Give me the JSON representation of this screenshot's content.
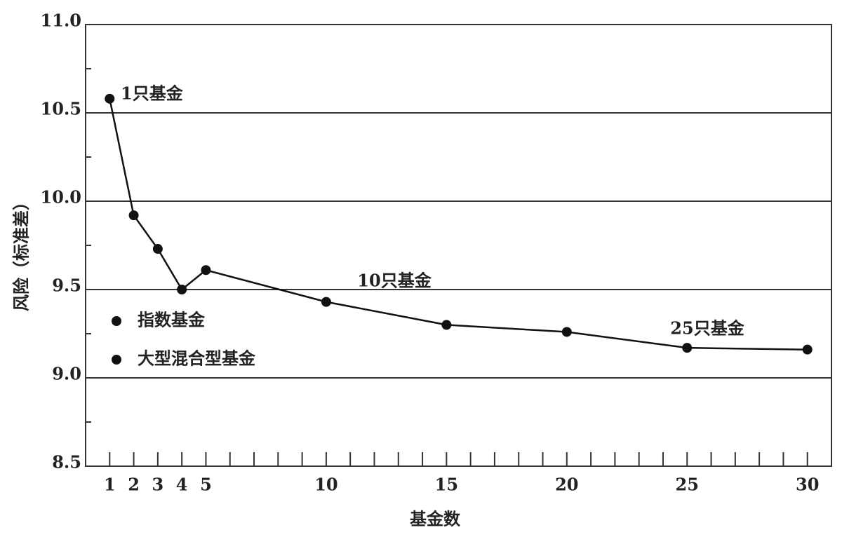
{
  "chart_data": {
    "type": "line",
    "x_label": "基金数",
    "y_label": "风险（标准差）",
    "x": [
      1,
      2,
      3,
      4,
      5,
      10,
      15,
      20,
      25,
      30
    ],
    "series": [
      {
        "color": "#111111",
        "values": [
          10.58,
          9.92,
          9.73,
          9.5,
          9.61,
          9.43,
          9.3,
          9.26,
          9.17,
          9.16
        ]
      }
    ],
    "legend": [
      "指数基金",
      "大型混合型基金"
    ],
    "annotations": [
      "1只基金",
      "10只基金",
      "25只基金"
    ],
    "xlim": [
      0,
      31
    ],
    "ylim": [
      8.5,
      11.0
    ],
    "xticks": [
      1,
      2,
      3,
      4,
      5,
      10,
      15,
      20,
      25,
      30
    ],
    "x_minor_ticks": [
      6,
      7,
      8,
      9,
      11,
      12,
      13,
      14,
      16,
      17,
      18,
      19,
      21,
      22,
      23,
      24,
      26,
      27,
      28,
      29
    ],
    "yticks": [
      8.5,
      {
        "value": 9,
        "label": "9.0"
      },
      9.5,
      {
        "value": 10,
        "label": "10.0"
      },
      10.5,
      {
        "value": 11,
        "label": "11.0"
      }
    ],
    "y_minor_ticks": [
      8.75,
      9.25,
      9.75,
      10.25,
      10.75
    ],
    "grid_values": [
      9,
      9.5,
      10,
      10.5
    ],
    "grid": true
  }
}
